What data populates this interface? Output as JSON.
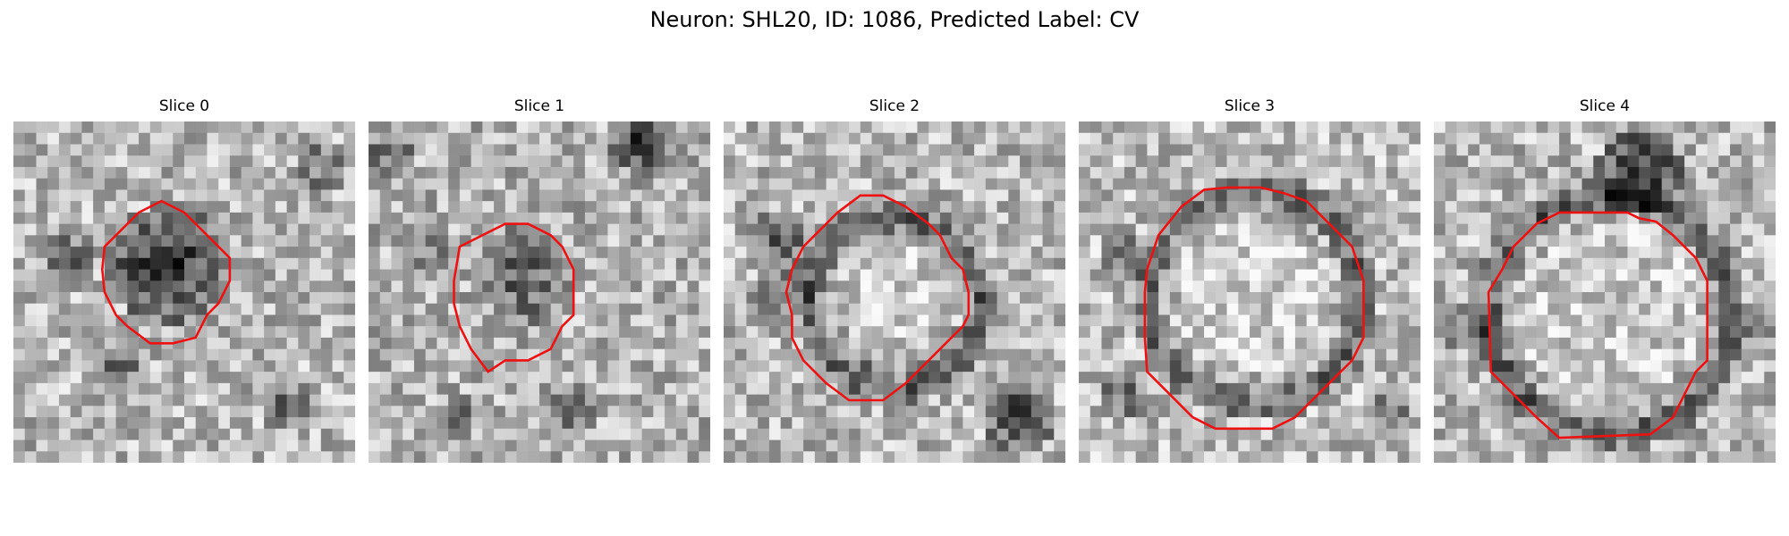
{
  "figure": {
    "title": "Neuron: SHL20, ID: 1086, Predicted Label: CV"
  },
  "colors": {
    "contour": "#ee1111",
    "background": "#ffffff"
  },
  "panels": [
    {
      "title": "Slice 0"
    },
    {
      "title": "Slice 1"
    },
    {
      "title": "Slice 2"
    },
    {
      "title": "Slice 3"
    },
    {
      "title": "Slice 4"
    }
  ]
}
